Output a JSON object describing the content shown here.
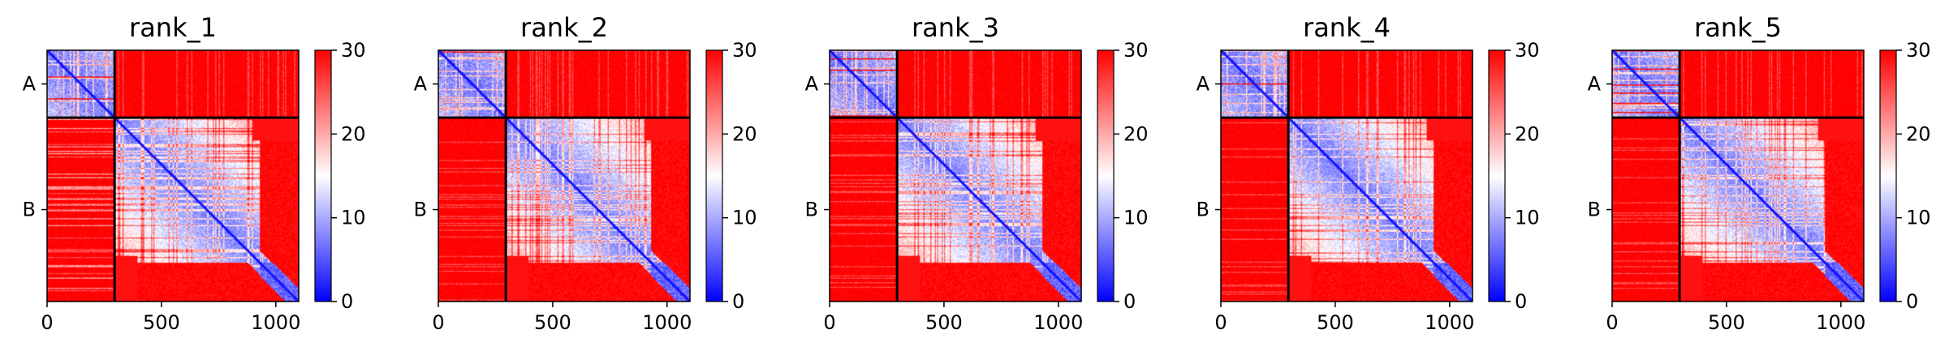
{
  "figure": {
    "colormap": "bwr",
    "color_low": "#0000ff",
    "color_mid": "#ffffff",
    "color_high": "#ff0000"
  },
  "chart_data": [
    {
      "type": "heatmap",
      "title": "rank_1",
      "xlim": [
        0,
        1100
      ],
      "x_ticks": [
        0,
        500,
        1000
      ],
      "y_ticks": [
        "A",
        "B"
      ],
      "chain_boundary": 295,
      "colorbar": {
        "min": 0,
        "max": 30,
        "ticks": [
          0,
          10,
          20,
          30
        ]
      }
    },
    {
      "type": "heatmap",
      "title": "rank_2",
      "xlim": [
        0,
        1100
      ],
      "x_ticks": [
        0,
        500,
        1000
      ],
      "y_ticks": [
        "A",
        "B"
      ],
      "chain_boundary": 295,
      "colorbar": {
        "min": 0,
        "max": 30,
        "ticks": [
          0,
          10,
          20,
          30
        ]
      }
    },
    {
      "type": "heatmap",
      "title": "rank_3",
      "xlim": [
        0,
        1100
      ],
      "x_ticks": [
        0,
        500,
        1000
      ],
      "y_ticks": [
        "A",
        "B"
      ],
      "chain_boundary": 295,
      "colorbar": {
        "min": 0,
        "max": 30,
        "ticks": [
          0,
          10,
          20,
          30
        ]
      }
    },
    {
      "type": "heatmap",
      "title": "rank_4",
      "xlim": [
        0,
        1100
      ],
      "x_ticks": [
        0,
        500,
        1000
      ],
      "y_ticks": [
        "A",
        "B"
      ],
      "chain_boundary": 295,
      "colorbar": {
        "min": 0,
        "max": 30,
        "ticks": [
          0,
          10,
          20,
          30
        ]
      }
    },
    {
      "type": "heatmap",
      "title": "rank_5",
      "xlim": [
        0,
        1100
      ],
      "x_ticks": [
        0,
        500,
        1000
      ],
      "y_ticks": [
        "A",
        "B"
      ],
      "chain_boundary": 295,
      "colorbar": {
        "min": 0,
        "max": 30,
        "ticks": [
          0,
          10,
          20,
          30
        ]
      }
    }
  ]
}
